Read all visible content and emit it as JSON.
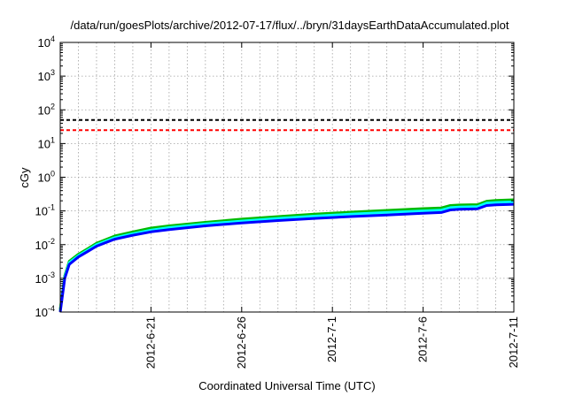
{
  "chart_data": {
    "type": "line",
    "title": "/data/run/goesPlots/archive/2012-07-17/flux/../bryn/31daysEarthDataAccumulated.plot",
    "xlabel": "Coordinated Universal Time (UTC)",
    "ylabel": "cGy",
    "y_scale": "log",
    "ylim": [
      "1e-4",
      "1e4"
    ],
    "xlim": [
      "2012-06-16",
      "2012-07-11"
    ],
    "x_tick_labels": [
      "2012-6-21",
      "2012-6-26",
      "2012-7-1",
      "2012-7-6",
      "2012-7-11"
    ],
    "x_tick_dates": [
      "2012-06-21",
      "2012-06-26",
      "2012-07-01",
      "2012-07-06",
      "2012-07-11"
    ],
    "y_ticks": [
      {
        "base": "10",
        "exp": "-4",
        "value": 0.0001
      },
      {
        "base": "10",
        "exp": "-3",
        "value": 0.001
      },
      {
        "base": "10",
        "exp": "-2",
        "value": 0.01
      },
      {
        "base": "10",
        "exp": "-1",
        "value": 0.1
      },
      {
        "base": "10",
        "exp": "0",
        "value": 1
      },
      {
        "base": "10",
        "exp": "1",
        "value": 10
      },
      {
        "base": "10",
        "exp": "2",
        "value": 100
      },
      {
        "base": "10",
        "exp": "3",
        "value": 1000
      },
      {
        "base": "10",
        "exp": "4",
        "value": 10000
      }
    ],
    "grid": true,
    "reference_lines": [
      {
        "y": 50,
        "color": "#000000",
        "style": "dashed"
      },
      {
        "y": 25,
        "color": "#ff0000",
        "style": "dashed"
      }
    ],
    "series": [
      {
        "color": "#00bb00",
        "x": [
          "2012-06-16",
          "2012-06-16T06:00",
          "2012-06-16T12:00",
          "2012-06-17",
          "2012-06-17T12:00",
          "2012-06-18",
          "2012-06-19",
          "2012-06-20",
          "2012-06-21",
          "2012-06-22",
          "2012-06-24",
          "2012-06-26",
          "2012-06-28",
          "2012-06-30",
          "2012-07-02",
          "2012-07-04",
          "2012-07-06",
          "2012-07-07",
          "2012-07-07T12:00",
          "2012-07-08",
          "2012-07-09",
          "2012-07-09T12:00",
          "2012-07-10",
          "2012-07-11"
        ],
        "values": [
          0.00012,
          0.0012,
          0.0032,
          0.0052,
          0.0075,
          0.011,
          0.018,
          0.024,
          0.031,
          0.036,
          0.046,
          0.057,
          0.068,
          0.08,
          0.092,
          0.104,
          0.117,
          0.123,
          0.145,
          0.15,
          0.154,
          0.195,
          0.205,
          0.215
        ]
      },
      {
        "color": "#00ffff",
        "x": [
          "2012-06-16",
          "2012-06-16T06:00",
          "2012-06-16T12:00",
          "2012-06-17",
          "2012-06-17T12:00",
          "2012-06-18",
          "2012-06-19",
          "2012-06-20",
          "2012-06-21",
          "2012-06-22",
          "2012-06-24",
          "2012-06-26",
          "2012-06-28",
          "2012-06-30",
          "2012-07-02",
          "2012-07-04",
          "2012-07-06",
          "2012-07-07",
          "2012-07-07T12:00",
          "2012-07-08",
          "2012-07-09",
          "2012-07-09T12:00",
          "2012-07-10",
          "2012-07-11"
        ],
        "values": [
          0.00011,
          0.0011,
          0.0029,
          0.0047,
          0.0068,
          0.01,
          0.016,
          0.021,
          0.027,
          0.032,
          0.041,
          0.05,
          0.06,
          0.07,
          0.08,
          0.09,
          0.1,
          0.106,
          0.125,
          0.13,
          0.134,
          0.17,
          0.178,
          0.185
        ]
      },
      {
        "color": "#0000ff",
        "x": [
          "2012-06-16",
          "2012-06-16T06:00",
          "2012-06-16T12:00",
          "2012-06-17",
          "2012-06-17T12:00",
          "2012-06-18",
          "2012-06-19",
          "2012-06-20",
          "2012-06-21",
          "2012-06-22",
          "2012-06-24",
          "2012-06-26",
          "2012-06-28",
          "2012-06-30",
          "2012-07-02",
          "2012-07-04",
          "2012-07-06",
          "2012-07-07",
          "2012-07-07T12:00",
          "2012-07-08",
          "2012-07-09",
          "2012-07-09T12:00",
          "2012-07-10",
          "2012-07-11"
        ],
        "values": [
          0.0001,
          0.001,
          0.0026,
          0.0043,
          0.0062,
          0.009,
          0.0145,
          0.019,
          0.024,
          0.028,
          0.036,
          0.044,
          0.052,
          0.06,
          0.068,
          0.076,
          0.085,
          0.09,
          0.107,
          0.112,
          0.116,
          0.145,
          0.152,
          0.158
        ]
      }
    ]
  }
}
